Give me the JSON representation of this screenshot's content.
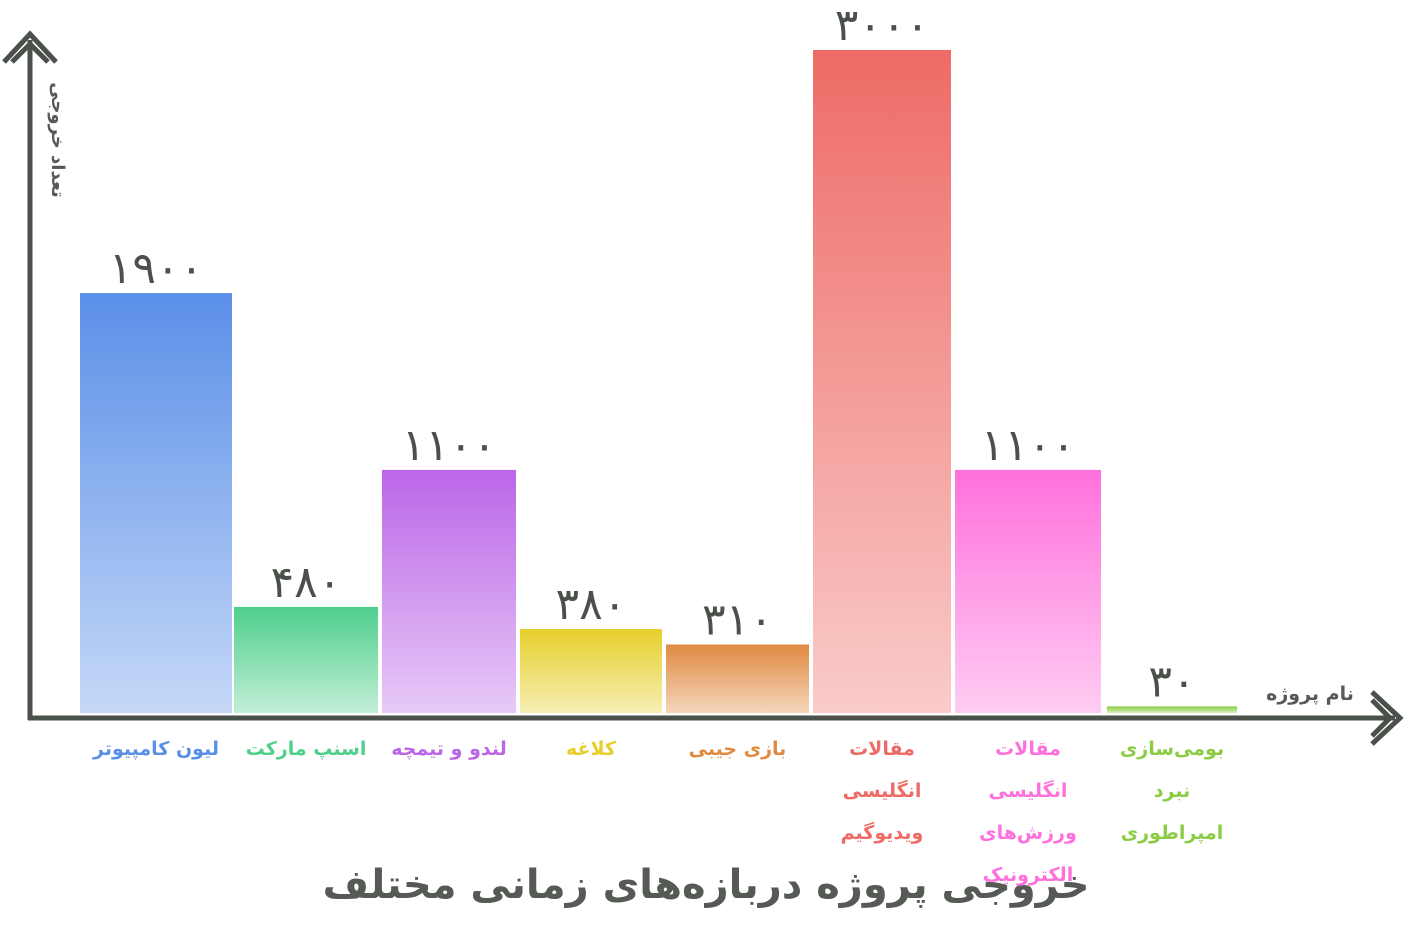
{
  "chart_data": {
    "type": "bar",
    "title": "خروجی پروژه دربازه‌های زمانی مختلف",
    "y_label": "تعداد خروجی",
    "x_label": "نام پروژه",
    "categories": [
      "لیون کامپیوتر",
      "اسنپ مارکت",
      "لندو و تیمچه",
      "کلاغه",
      "بازی جیبی",
      "مقالات انگلیسی ویدیوگیم",
      "مقالات انگلیسی ورزش‌های الکترونیک",
      "بومی‌سازی نبرد امپراطوری"
    ],
    "values": [
      1900,
      480,
      1100,
      380,
      310,
      3000,
      1100,
      30
    ],
    "value_labels": [
      "۱۹۰۰",
      "۴۸۰",
      "۱۱۰۰",
      "۳۸۰",
      "۳۱۰",
      "۳۰۰۰",
      "۱۱۰۰",
      "۳۰"
    ],
    "colors": [
      "#5a8fe8",
      "#4fcf8c",
      "#bb66e8",
      "#e6cf2a",
      "#e08a40",
      "#ee6b66",
      "#ff70dc",
      "#8ccc44"
    ],
    "ylim": [
      0,
      3000
    ]
  }
}
